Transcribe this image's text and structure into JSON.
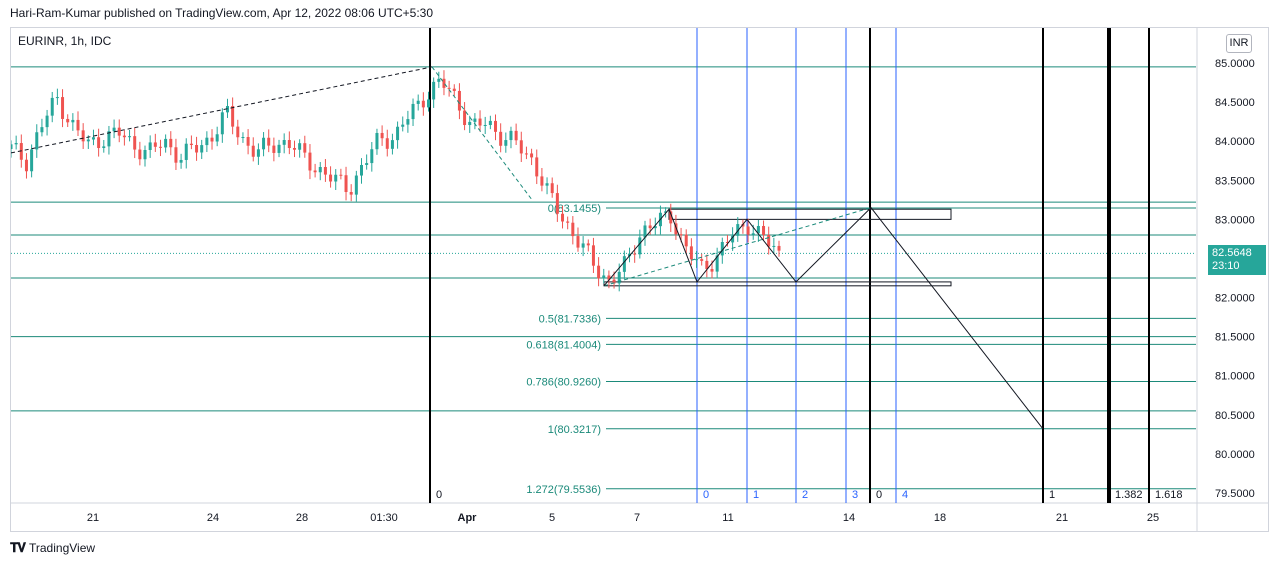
{
  "publisher": "Hari-Ram-Kumar published on TradingView.com, Apr 12, 2022 08:06 UTC+5:30",
  "symbol_info": "EURINR, 1h, IDC",
  "currency": "INR",
  "last_price": "82.5648",
  "countdown": "23:10",
  "footer_brand": "TradingView",
  "colors": {
    "up": "#26a69a",
    "down": "#ef5350",
    "fib": "#1b8a7a",
    "blue": "#2962ff",
    "black": "#000000"
  },
  "chart_data": {
    "type": "candlestick",
    "y_ticks": [
      "85.0000",
      "84.5000",
      "84.0000",
      "83.5000",
      "83.0000",
      "82.5000",
      "82.0000",
      "81.5000",
      "81.0000",
      "80.5000",
      "80.0000",
      "79.5000"
    ],
    "ylim": [
      79.5,
      85.0
    ],
    "x_ticks": [
      "21",
      "24",
      "28",
      "01:30",
      "Apr",
      "5",
      "7",
      "11",
      "14",
      "18",
      "21",
      "25"
    ],
    "price_path": [
      83.9,
      83.75,
      84.2,
      84.55,
      84.2,
      83.95,
      84.05,
      84.1,
      83.95,
      83.85,
      84.0,
      83.8,
      83.9,
      84.05,
      84.35,
      84.05,
      83.85,
      83.95,
      84.0,
      83.8,
      83.65,
      83.5,
      83.4,
      83.7,
      84.05,
      84.05,
      84.35,
      84.6,
      84.75,
      84.55,
      84.15,
      84.25,
      84.05,
      83.95,
      83.75,
      83.3,
      83.0,
      82.7,
      82.4,
      82.2,
      82.4,
      82.85,
      82.95,
      83.05,
      82.6,
      82.35,
      82.55,
      82.8,
      82.95,
      82.75,
      82.55
    ],
    "fib_levels": [
      {
        "label": "0(83.1455)",
        "value": 83.1455
      },
      {
        "label": "0.5(81.7336)",
        "value": 81.7336
      },
      {
        "label": "0.618(81.4004)",
        "value": 81.4004
      },
      {
        "label": "0.786(80.9260)",
        "value": 80.926
      },
      {
        "label": "1(80.3217)",
        "value": 80.3217
      },
      {
        "label": "1.272(79.5536)",
        "value": 79.5536
      }
    ],
    "horizontal_levels": [
      84.95,
      83.22,
      82.8,
      82.25,
      81.5,
      80.55
    ],
    "cycle_labels_blue": [
      "0",
      "1",
      "2",
      "3",
      "4"
    ],
    "cycle_labels_black": [
      "0",
      "0",
      "1",
      "1.382",
      "1.618"
    ]
  }
}
